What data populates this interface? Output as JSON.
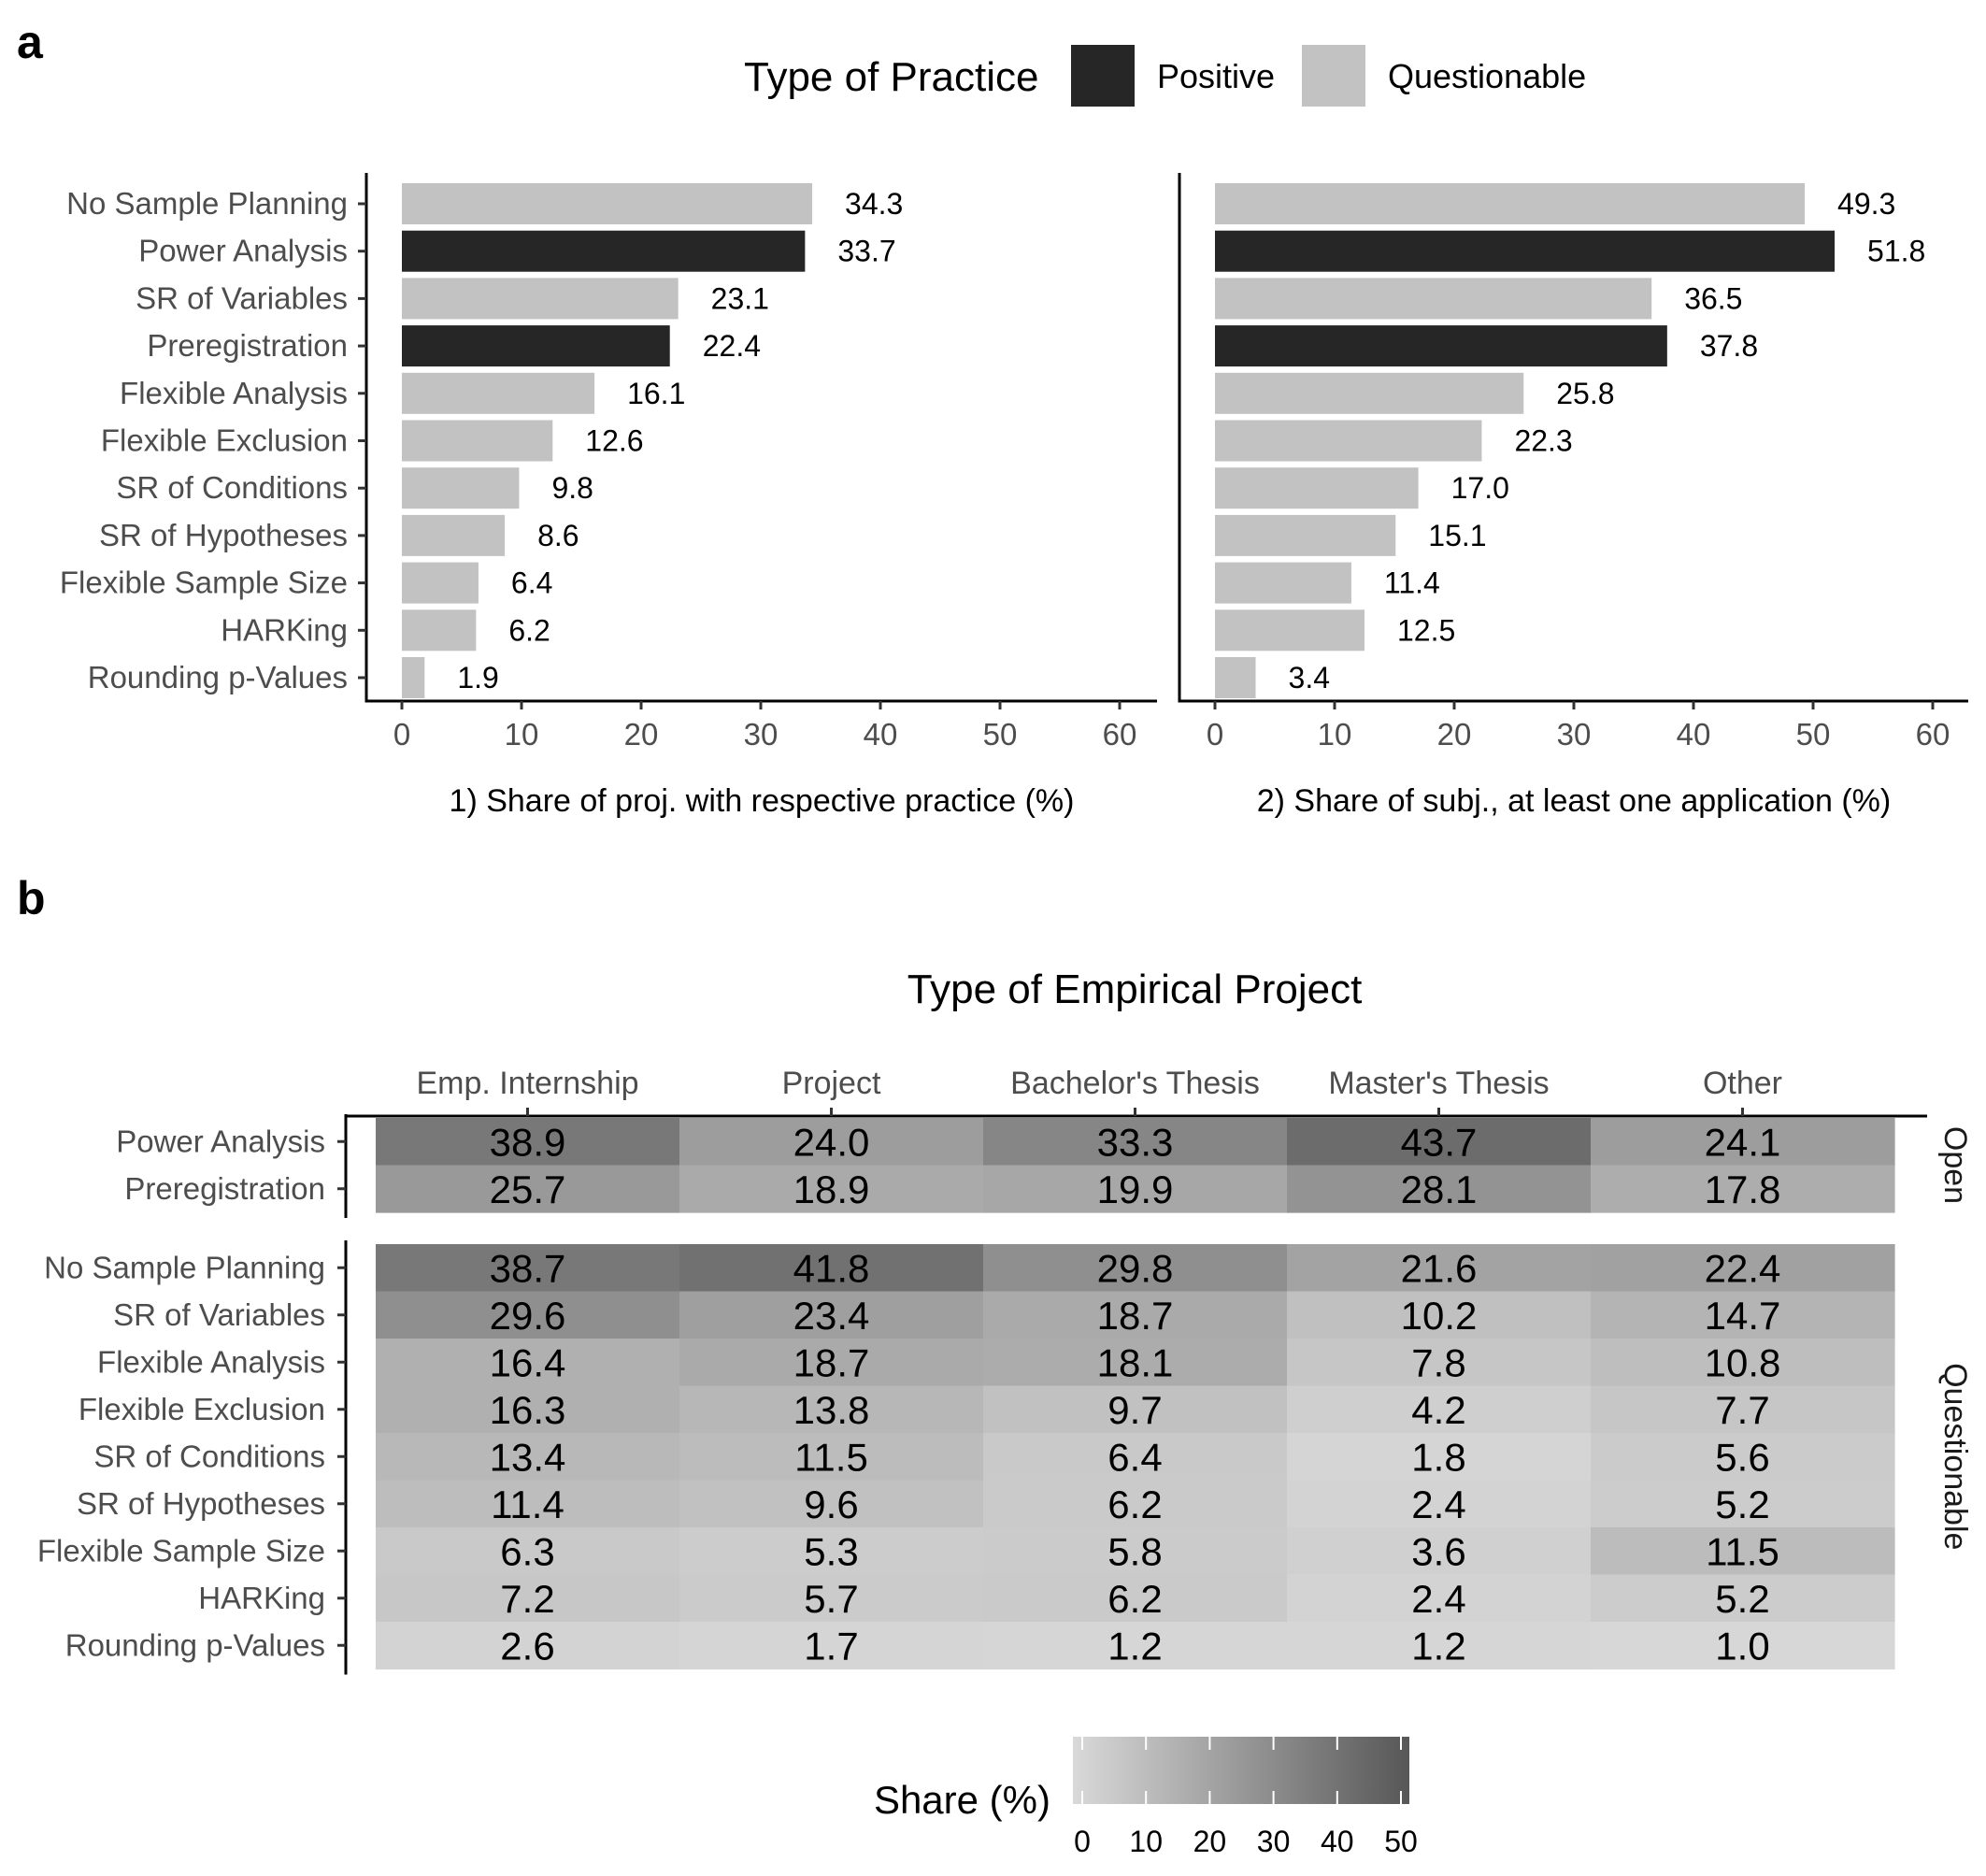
{
  "panel_a_label": "a",
  "panel_b_label": "b",
  "legend": {
    "title": "Type of Practice",
    "items": [
      {
        "label": "Positive",
        "color": "#262626"
      },
      {
        "label": "Questionable",
        "color": "#c2c2c2"
      }
    ]
  },
  "chart_data": [
    {
      "type": "bar",
      "orientation": "horizontal",
      "xlabel": "1) Share of proj. with respective practice (%)",
      "xlim": [
        0,
        60
      ],
      "xticks": [
        0,
        10,
        20,
        30,
        40,
        50,
        60
      ],
      "categories": [
        "No Sample Planning",
        "Power Analysis",
        "SR of Variables",
        "Preregistration",
        "Flexible Analysis",
        "Flexible Exclusion",
        "SR of Conditions",
        "SR of Hypotheses",
        "Flexible Sample Size",
        "HARKing",
        "Rounding p-Values"
      ],
      "values": [
        34.3,
        33.7,
        23.1,
        22.4,
        16.1,
        12.6,
        9.8,
        8.6,
        6.4,
        6.2,
        1.9
      ],
      "labels": [
        "34.3",
        "33.7",
        "23.1",
        "22.4",
        "16.1",
        "12.6",
        "9.8",
        "8.6",
        "6.4",
        "6.2",
        "1.9"
      ],
      "practice_type": [
        "Questionable",
        "Positive",
        "Questionable",
        "Positive",
        "Questionable",
        "Questionable",
        "Questionable",
        "Questionable",
        "Questionable",
        "Questionable",
        "Questionable"
      ]
    },
    {
      "type": "bar",
      "orientation": "horizontal",
      "xlabel": "2) Share of subj., at least one application (%)",
      "xlim": [
        0,
        60
      ],
      "xticks": [
        0,
        10,
        20,
        30,
        40,
        50,
        60
      ],
      "categories": [
        "No Sample Planning",
        "Power Analysis",
        "SR of Variables",
        "Preregistration",
        "Flexible Analysis",
        "Flexible Exclusion",
        "SR of Conditions",
        "SR of Hypotheses",
        "Flexible Sample Size",
        "HARKing",
        "Rounding p-Values"
      ],
      "values": [
        49.3,
        51.8,
        36.5,
        37.8,
        25.8,
        22.3,
        17.0,
        15.1,
        11.4,
        12.5,
        3.4
      ],
      "labels": [
        "49.3",
        "51.8",
        "36.5",
        "37.8",
        "25.8",
        "22.3",
        "17.0",
        "15.1",
        "11.4",
        "12.5",
        "3.4"
      ],
      "practice_type": [
        "Questionable",
        "Positive",
        "Questionable",
        "Positive",
        "Questionable",
        "Questionable",
        "Questionable",
        "Questionable",
        "Questionable",
        "Questionable",
        "Questionable"
      ]
    },
    {
      "type": "heatmap",
      "title": "Type of Empirical Project",
      "columns": [
        "Emp. Internship",
        "Project",
        "Bachelor's Thesis",
        "Master's Thesis",
        "Other"
      ],
      "groups": [
        {
          "name": "Open",
          "rows": [
            "Power Analysis",
            "Preregistration"
          ],
          "values": [
            [
              38.9,
              24.0,
              33.3,
              43.7,
              24.1
            ],
            [
              25.7,
              18.9,
              19.9,
              28.1,
              17.8
            ]
          ],
          "labels": [
            [
              "38.9",
              "24.0",
              "33.3",
              "43.7",
              "24.1"
            ],
            [
              "25.7",
              "18.9",
              "19.9",
              "28.1",
              "17.8"
            ]
          ]
        },
        {
          "name": "Questionable",
          "rows": [
            "No Sample Planning",
            "SR of Variables",
            "Flexible Analysis",
            "Flexible Exclusion",
            "SR of Conditions",
            "SR of Hypotheses",
            "Flexible Sample Size",
            "HARKing",
            "Rounding p-Values"
          ],
          "values": [
            [
              38.7,
              41.8,
              29.8,
              21.6,
              22.4
            ],
            [
              29.6,
              23.4,
              18.7,
              10.2,
              14.7
            ],
            [
              16.4,
              18.7,
              18.1,
              7.8,
              10.8
            ],
            [
              16.3,
              13.8,
              9.7,
              4.2,
              7.7
            ],
            [
              13.4,
              11.5,
              6.4,
              1.8,
              5.6
            ],
            [
              11.4,
              9.6,
              6.2,
              2.4,
              5.2
            ],
            [
              6.3,
              5.3,
              5.8,
              3.6,
              11.5
            ],
            [
              7.2,
              5.7,
              6.2,
              2.4,
              5.2
            ],
            [
              2.6,
              1.7,
              1.2,
              1.2,
              1.0
            ]
          ],
          "labels": [
            [
              "38.7",
              "41.8",
              "29.8",
              "21.6",
              "22.4"
            ],
            [
              "29.6",
              "23.4",
              "18.7",
              "10.2",
              "14.7"
            ],
            [
              "16.4",
              "18.7",
              "18.1",
              "7.8",
              "10.8"
            ],
            [
              "16.3",
              "13.8",
              "9.7",
              "4.2",
              "7.7"
            ],
            [
              "13.4",
              "11.5",
              "6.4",
              "1.8",
              "5.6"
            ],
            [
              "11.4",
              "9.6",
              "6.2",
              "2.4",
              "5.2"
            ],
            [
              "6.3",
              "5.3",
              "5.8",
              "3.6",
              "11.5"
            ],
            [
              "7.2",
              "5.7",
              "6.2",
              "2.4",
              "5.2"
            ],
            [
              "2.6",
              "1.7",
              "1.2",
              "1.2",
              "1.0"
            ]
          ]
        }
      ],
      "colorbar": {
        "title": "Share (%)",
        "range": [
          0,
          52
        ],
        "ticks": [
          0,
          10,
          20,
          30,
          40,
          50
        ],
        "color_low": "#d9d9d9",
        "color_high": "#575757"
      }
    }
  ]
}
